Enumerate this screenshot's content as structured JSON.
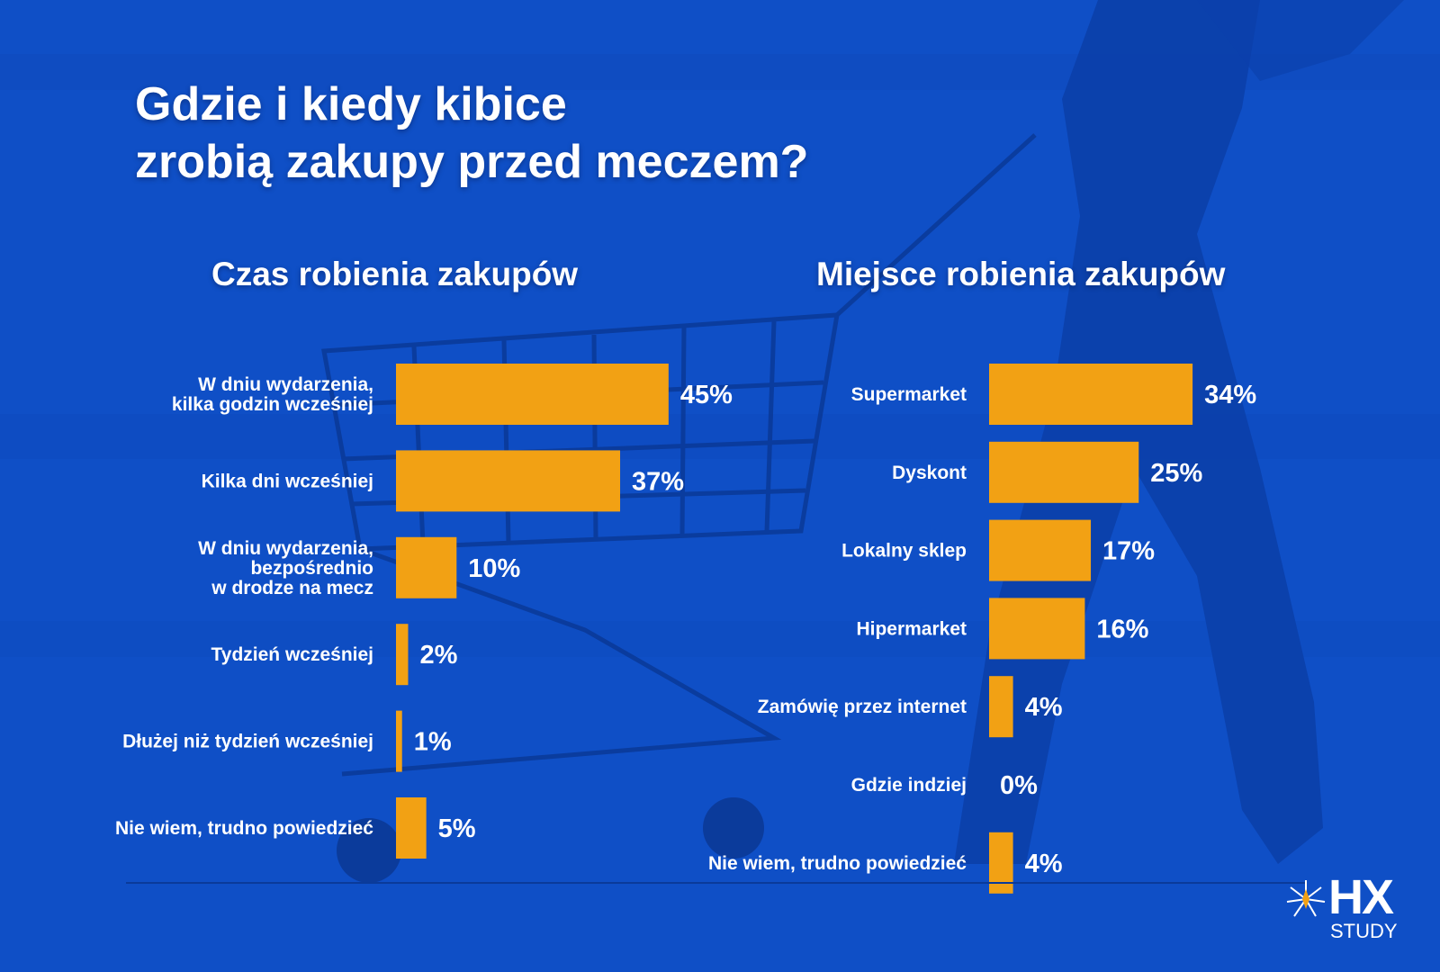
{
  "header": {
    "title_line1": "Gdzie i kiedy kibice",
    "title_line2": "zrobią zakupy przed meczem?"
  },
  "colors": {
    "background": "#0f4fc6",
    "bar": "#f2a114",
    "text": "#ffffff"
  },
  "logo": {
    "mark": "HX",
    "sub": "STUDY"
  },
  "chart_data": [
    {
      "type": "bar",
      "orientation": "horizontal",
      "title": "Czas robienia zakupów",
      "categories": [
        [
          "W dniu wydarzenia,",
          "kilka godzin wcześniej"
        ],
        [
          "Kilka dni wcześniej"
        ],
        [
          "W dniu wydarzenia,",
          "bezpośrednio",
          "w drodze na mecz"
        ],
        [
          "Tydzień wcześniej"
        ],
        [
          "Dłużej niż tydzień wcześniej"
        ],
        [
          "Nie wiem, trudno powiedzieć"
        ]
      ],
      "values": [
        45,
        37,
        10,
        2,
        1,
        5
      ],
      "value_labels": [
        "45%",
        "37%",
        "10%",
        "2%",
        "1%",
        "5%"
      ],
      "unit": "%"
    },
    {
      "type": "bar",
      "orientation": "horizontal",
      "title": "Miejsce robienia zakupów",
      "categories": [
        [
          "Supermarket"
        ],
        [
          "Dyskont"
        ],
        [
          "Lokalny sklep"
        ],
        [
          "Hipermarket"
        ],
        [
          "Zamówię przez internet"
        ],
        [
          "Gdzie indziej"
        ],
        [
          "Nie wiem, trudno powiedzieć"
        ]
      ],
      "values": [
        34,
        25,
        17,
        16,
        4,
        0,
        4
      ],
      "value_labels": [
        "34%",
        "25%",
        "17%",
        "16%",
        "4%",
        "0%",
        "4%"
      ],
      "unit": "%"
    }
  ]
}
